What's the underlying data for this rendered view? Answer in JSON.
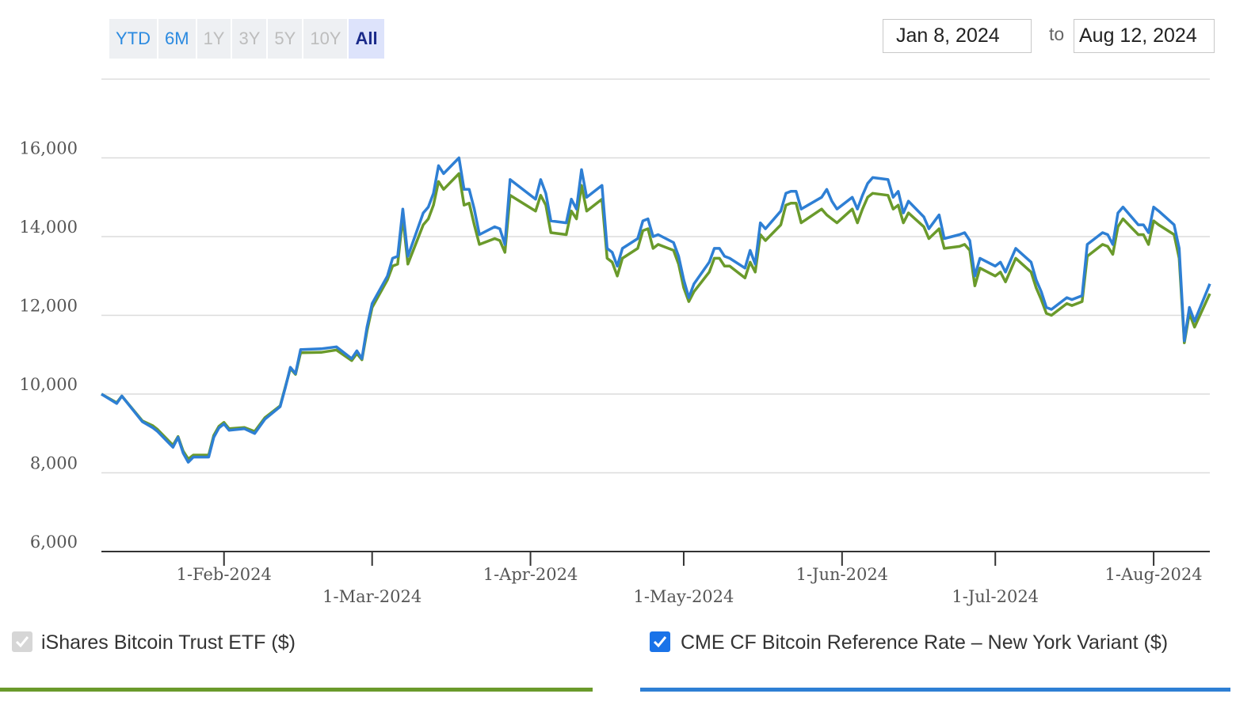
{
  "controls": {
    "ranges": [
      "YTD",
      "6M",
      "1Y",
      "3Y",
      "5Y",
      "10Y",
      "All"
    ],
    "active_range": "All",
    "start_date": "Jan 8, 2024",
    "to": "to",
    "end_date": "Aug 12, 2024"
  },
  "chart_data": {
    "type": "line",
    "x": [
      "2024-01-08",
      "2024-01-11",
      "2024-01-12",
      "2024-01-16",
      "2024-01-18",
      "2024-01-19",
      "2024-01-22",
      "2024-01-23",
      "2024-01-24",
      "2024-01-25",
      "2024-01-26",
      "2024-01-29",
      "2024-01-30",
      "2024-01-31",
      "2024-02-01",
      "2024-02-02",
      "2024-02-05",
      "2024-02-07",
      "2024-02-09",
      "2024-02-12",
      "2024-02-13",
      "2024-02-14",
      "2024-02-15",
      "2024-02-16",
      "2024-02-20",
      "2024-02-23",
      "2024-02-26",
      "2024-02-27",
      "2024-02-28",
      "2024-02-29",
      "2024-03-01",
      "2024-03-04",
      "2024-03-05",
      "2024-03-06",
      "2024-03-07",
      "2024-03-08",
      "2024-03-11",
      "2024-03-12",
      "2024-03-13",
      "2024-03-14",
      "2024-03-15",
      "2024-03-18",
      "2024-03-19",
      "2024-03-20",
      "2024-03-21",
      "2024-03-22",
      "2024-03-25",
      "2024-03-26",
      "2024-03-27",
      "2024-03-28",
      "2024-04-02",
      "2024-04-03",
      "2024-04-04",
      "2024-04-05",
      "2024-04-08",
      "2024-04-09",
      "2024-04-10",
      "2024-04-11",
      "2024-04-12",
      "2024-04-15",
      "2024-04-16",
      "2024-04-17",
      "2024-04-18",
      "2024-04-19",
      "2024-04-22",
      "2024-04-23",
      "2024-04-24",
      "2024-04-25",
      "2024-04-26",
      "2024-04-29",
      "2024-04-30",
      "2024-05-01",
      "2024-05-02",
      "2024-05-03",
      "2024-05-06",
      "2024-05-07",
      "2024-05-08",
      "2024-05-09",
      "2024-05-10",
      "2024-05-13",
      "2024-05-14",
      "2024-05-15",
      "2024-05-16",
      "2024-05-17",
      "2024-05-20",
      "2024-05-21",
      "2024-05-22",
      "2024-05-23",
      "2024-05-24",
      "2024-05-28",
      "2024-05-29",
      "2024-05-30",
      "2024-05-31",
      "2024-06-03",
      "2024-06-04",
      "2024-06-05",
      "2024-06-06",
      "2024-06-07",
      "2024-06-10",
      "2024-06-11",
      "2024-06-12",
      "2024-06-13",
      "2024-06-14",
      "2024-06-17",
      "2024-06-18",
      "2024-06-20",
      "2024-06-21",
      "2024-06-24",
      "2024-06-25",
      "2024-06-26",
      "2024-06-27",
      "2024-06-28",
      "2024-07-01",
      "2024-07-02",
      "2024-07-03",
      "2024-07-05",
      "2024-07-08",
      "2024-07-09",
      "2024-07-10",
      "2024-07-11",
      "2024-07-12",
      "2024-07-15",
      "2024-07-16",
      "2024-07-17",
      "2024-07-18",
      "2024-07-19",
      "2024-07-22",
      "2024-07-23",
      "2024-07-24",
      "2024-07-25",
      "2024-07-26",
      "2024-07-29",
      "2024-07-30",
      "2024-07-31",
      "2024-08-01",
      "2024-08-02",
      "2024-08-05",
      "2024-08-06",
      "2024-08-07",
      "2024-08-08",
      "2024-08-09",
      "2024-08-12"
    ],
    "series": [
      {
        "name": "iShares Bitcoin Trust ETF ($)",
        "color": "#6a9a2b",
        "values": [
          10000,
          9780,
          9950,
          9320,
          9200,
          9100,
          8700,
          8920,
          8550,
          8350,
          8450,
          8450,
          8950,
          9180,
          9280,
          9120,
          9150,
          9050,
          9400,
          9700,
          10180,
          10650,
          10500,
          11050,
          11060,
          11120,
          10850,
          11030,
          10870,
          11600,
          12200,
          12900,
          13250,
          13300,
          14500,
          13300,
          14300,
          14450,
          14800,
          15400,
          15200,
          15600,
          14800,
          14850,
          14300,
          13800,
          13950,
          13900,
          13600,
          15050,
          14650,
          15050,
          14800,
          14100,
          14050,
          14650,
          14450,
          15300,
          14650,
          14950,
          13450,
          13350,
          13000,
          13450,
          13700,
          14150,
          14200,
          13700,
          13800,
          13650,
          13300,
          12700,
          12350,
          12600,
          13100,
          13450,
          13450,
          13250,
          13250,
          12950,
          13350,
          13100,
          14050,
          13900,
          14300,
          14800,
          14850,
          14850,
          14350,
          14700,
          14550,
          14450,
          14350,
          14700,
          14350,
          14700,
          15000,
          15100,
          15050,
          14700,
          14800,
          14350,
          14600,
          14250,
          13950,
          14200,
          13700,
          13750,
          13800,
          13650,
          12750,
          13200,
          13000,
          13100,
          12850,
          13450,
          13100,
          12700,
          12400,
          12050,
          12000,
          12300,
          12250,
          12300,
          12350,
          13500,
          13800,
          13750,
          13550,
          14250,
          14450,
          14050,
          14050,
          13800,
          14400,
          14300,
          14050,
          13450,
          11300,
          12050,
          11700,
          12550
        ]
      },
      {
        "name": "CME CF Bitcoin Reference Rate – New York Variant ($)",
        "color": "#2e7fd4",
        "values": [
          10000,
          9760,
          9950,
          9300,
          9150,
          9050,
          8650,
          8900,
          8500,
          8270,
          8400,
          8400,
          8900,
          9140,
          9240,
          9080,
          9120,
          9000,
          9360,
          9680,
          10160,
          10680,
          10520,
          11130,
          11150,
          11200,
          10900,
          11100,
          10900,
          11700,
          12300,
          13000,
          13450,
          13500,
          14700,
          13500,
          14600,
          14750,
          15100,
          15800,
          15600,
          16000,
          15200,
          15200,
          14700,
          14050,
          14250,
          14200,
          13800,
          15450,
          14950,
          15450,
          15100,
          14400,
          14350,
          14950,
          14700,
          15700,
          15000,
          15300,
          13700,
          13600,
          13250,
          13700,
          13950,
          14400,
          14450,
          14000,
          14050,
          13850,
          13500,
          12900,
          12450,
          12800,
          13350,
          13700,
          13700,
          13500,
          13450,
          13200,
          13650,
          13300,
          14350,
          14200,
          14650,
          15100,
          15150,
          15150,
          14700,
          15000,
          15200,
          14900,
          14700,
          15000,
          14700,
          15050,
          15350,
          15500,
          15450,
          15000,
          15150,
          14600,
          14900,
          14500,
          14200,
          14550,
          13950,
          14050,
          14100,
          13900,
          13000,
          13450,
          13250,
          13350,
          13100,
          13700,
          13350,
          12900,
          12600,
          12200,
          12150,
          12450,
          12400,
          12450,
          12500,
          13800,
          14100,
          14050,
          13800,
          14600,
          14750,
          14300,
          14300,
          14100,
          14750,
          14650,
          14300,
          13700,
          11350,
          12200,
          11850,
          12800
        ]
      }
    ],
    "xlim": [
      "2024-01-08",
      "2024-08-12"
    ],
    "xticks": [
      {
        "value": "2024-02-01",
        "label": "1-Feb-2024"
      },
      {
        "value": "2024-03-01",
        "label": "1-Mar-2024"
      },
      {
        "value": "2024-04-01",
        "label": "1-Apr-2024"
      },
      {
        "value": "2024-05-01",
        "label": "1-May-2024"
      },
      {
        "value": "2024-06-01",
        "label": "1-Jun-2024"
      },
      {
        "value": "2024-07-01",
        "label": "1-Jul-2024"
      },
      {
        "value": "2024-08-01",
        "label": "1-Aug-2024"
      }
    ],
    "ylim": [
      6000,
      18000
    ],
    "yticks": [
      {
        "value": 6000,
        "label": "6,000"
      },
      {
        "value": 8000,
        "label": "8,000"
      },
      {
        "value": 10000,
        "label": "10,000"
      },
      {
        "value": 12000,
        "label": "12,000"
      },
      {
        "value": 14000,
        "label": "14,000"
      },
      {
        "value": 16000,
        "label": "16,000"
      }
    ],
    "grid": true
  }
}
